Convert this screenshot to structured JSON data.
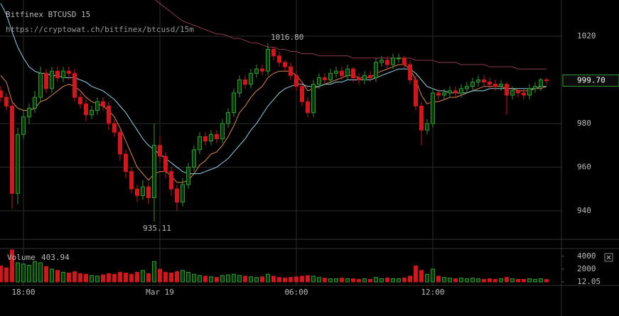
{
  "chart_data": {
    "type": "candlestick",
    "title": "Bitfinex BTCUSD 15",
    "subtitle": "https://cryptowat.ch/bitfinex/btcusd/15m",
    "categories": [
      null,
      null,
      null,
      null,
      "18:00",
      null,
      null,
      null,
      null,
      null,
      null,
      null,
      null,
      null,
      null,
      null,
      null,
      null,
      null,
      null,
      null,
      null,
      null,
      null,
      null,
      null,
      null,
      null,
      "Mar 19",
      null,
      null,
      null,
      null,
      null,
      null,
      null,
      null,
      null,
      null,
      null,
      null,
      null,
      null,
      null,
      null,
      null,
      null,
      null,
      null,
      null,
      null,
      null,
      "06:00",
      null,
      null,
      null,
      null,
      null,
      null,
      null,
      null,
      null,
      null,
      null,
      null,
      null,
      null,
      null,
      null,
      null,
      null,
      null,
      null,
      null,
      null,
      null,
      "12:00",
      null,
      null,
      null,
      null,
      null,
      null,
      null,
      null,
      null,
      null,
      null,
      null,
      null,
      null,
      null,
      null,
      null,
      null,
      null,
      null
    ],
    "open": [
      995,
      992,
      988,
      948,
      975,
      983,
      987,
      992,
      1003,
      996,
      1004,
      1001,
      1004,
      1003,
      992,
      989,
      984,
      986,
      990,
      988,
      980,
      976,
      966,
      958,
      950,
      947,
      951,
      946,
      970,
      965,
      958,
      950,
      944,
      952,
      960,
      968,
      974,
      972,
      975,
      973,
      980,
      985,
      994,
      1000,
      998,
      1003,
      1005,
      1004,
      1014,
      1011,
      1008,
      1006,
      1002,
      997,
      990,
      985,
      998,
      1001,
      1000,
      1003,
      1004,
      1002,
      1005,
      1001,
      1000,
      1002,
      1001,
      1008,
      1009,
      1007,
      1010,
      1010,
      1007,
      1000,
      988,
      977,
      980,
      994,
      993,
      994,
      995,
      994,
      996,
      997,
      999,
      1000,
      999,
      998,
      997,
      998,
      993,
      995,
      994,
      993,
      996,
      997,
      1000
    ],
    "high": [
      997,
      994,
      990,
      978,
      986,
      989,
      995,
      1006,
      1005,
      1006,
      1006,
      1006,
      1006,
      1005,
      994,
      991,
      988,
      992,
      992,
      990,
      982,
      978,
      968,
      960,
      952,
      954,
      953,
      980,
      974,
      967,
      960,
      952,
      955,
      962,
      970,
      976,
      976,
      977,
      977,
      982,
      987,
      996,
      1002,
      1002,
      1005,
      1007,
      1007,
      1016.8,
      1015,
      1013,
      1009,
      1008,
      1004,
      999,
      992,
      1000,
      1003,
      1003,
      1005,
      1006,
      1006,
      1007,
      1006,
      1003,
      1004,
      1004,
      1010,
      1011,
      1011,
      1012,
      1012,
      1011,
      1009,
      1002,
      990,
      982,
      996,
      996,
      996,
      997,
      997,
      998,
      999,
      1001,
      1002,
      1002,
      1001,
      1000,
      1000,
      999,
      997,
      996,
      996,
      998,
      999,
      1001,
      1001
    ],
    "low": [
      990,
      986,
      941,
      943,
      973,
      980,
      985,
      990,
      994,
      994,
      999,
      999,
      1000,
      990,
      987,
      981,
      982,
      984,
      986,
      977,
      974,
      963,
      955,
      948,
      944,
      945,
      943,
      935.11,
      962,
      955,
      947,
      940,
      942,
      950,
      958,
      966,
      970,
      970,
      971,
      971,
      978,
      983,
      992,
      996,
      996,
      1001,
      1002,
      1002,
      1009,
      1006,
      1004,
      1000,
      995,
      988,
      983,
      983,
      996,
      998,
      998,
      1001,
      1000,
      1000,
      999,
      998,
      998,
      999,
      999,
      1006,
      1005,
      1005,
      1008,
      1005,
      998,
      986,
      970,
      975,
      978,
      991,
      991,
      992,
      992,
      992,
      994,
      995,
      997,
      997,
      996,
      995,
      995,
      984,
      991,
      992,
      991,
      991,
      994,
      995,
      998
    ],
    "close": [
      992,
      988,
      948,
      975,
      983,
      987,
      992,
      1003,
      996,
      1004,
      1001,
      1004,
      1003,
      992,
      989,
      984,
      986,
      990,
      988,
      980,
      976,
      966,
      958,
      950,
      947,
      951,
      946,
      970,
      965,
      958,
      950,
      944,
      952,
      960,
      968,
      974,
      972,
      975,
      973,
      980,
      985,
      994,
      1000,
      998,
      1003,
      1005,
      1004,
      1014,
      1011,
      1008,
      1006,
      1002,
      997,
      990,
      985,
      998,
      1001,
      1000,
      1003,
      1004,
      1002,
      1005,
      1001,
      1000,
      1002,
      1001,
      1008,
      1009,
      1007,
      1010,
      1010,
      1007,
      1000,
      988,
      977,
      980,
      994,
      993,
      994,
      995,
      994,
      996,
      997,
      999,
      1000,
      999,
      998,
      997,
      998,
      993,
      995,
      994,
      993,
      996,
      997,
      1000,
      999.7
    ],
    "up_color": "#2f9a2f",
    "down_color": "#d2161b",
    "ylim": [
      927.6,
      1036.6
    ],
    "yticks": [
      940,
      960,
      980,
      1020
    ],
    "grid": true,
    "last_label": "999.70",
    "annotations": [
      {
        "label": "1016.80",
        "value": 1016.8,
        "of": "high"
      },
      {
        "label": "935.11",
        "value": 935.11,
        "of": "low"
      }
    ],
    "lines": [
      {
        "color": "#e0884a",
        "values": [
          1002,
          999,
          990,
          987,
          986,
          986,
          987,
          990,
          991,
          993,
          995,
          997,
          998,
          997,
          995,
          992,
          990,
          989,
          988,
          986,
          983,
          978,
          972,
          966,
          960,
          957,
          954,
          957,
          958,
          958,
          956,
          953,
          953,
          954,
          957,
          961,
          963,
          966,
          967,
          970,
          974,
          979,
          985,
          988,
          992,
          995,
          997,
          1001,
          1003,
          1004,
          1004,
          1004,
          1002,
          999,
          995,
          996,
          997,
          998,
          999,
          1000,
          1001,
          1002,
          1002,
          1001,
          1001,
          1001,
          1003,
          1004,
          1005,
          1006,
          1007,
          1007,
          1005,
          1000,
          993,
          989,
          990,
          990,
          991,
          992,
          992,
          993,
          994,
          995,
          996,
          997,
          997,
          997,
          997,
          996,
          996,
          995,
          995,
          995,
          996,
          996,
          997
        ]
      },
      {
        "color": "#8fd3e8",
        "values": [
          1035,
          1030,
          1022,
          1015,
          1010,
          1006,
          1004,
          1003,
          1003,
          1002,
          1002,
          1001,
          1001,
          1001,
          1000,
          999,
          997,
          996,
          995,
          993,
          991,
          988,
          985,
          981,
          977,
          973,
          970,
          968,
          966,
          964,
          962,
          960,
          958,
          957,
          957,
          957,
          958,
          959,
          960,
          962,
          964,
          967,
          970,
          973,
          977,
          980,
          984,
          988,
          991,
          994,
          996,
          997,
          998,
          998,
          997,
          997,
          997,
          998,
          998,
          999,
          999,
          1000,
          1000,
          1000,
          1000,
          1000,
          1001,
          1002,
          1003,
          1004,
          1005,
          1005,
          1005,
          1003,
          1000,
          997,
          996,
          995,
          995,
          994,
          994,
          994,
          994,
          995,
          995,
          995,
          996,
          996,
          996,
          996,
          996,
          996,
          996,
          996,
          996,
          997,
          997
        ]
      },
      {
        "color": "#8a3a4a",
        "values": [
          null,
          null,
          null,
          null,
          null,
          null,
          null,
          null,
          null,
          null,
          null,
          null,
          null,
          null,
          null,
          null,
          null,
          null,
          null,
          null,
          null,
          null,
          null,
          null,
          null,
          null,
          null,
          1037,
          1035,
          1033,
          1031,
          1029,
          1027,
          1026,
          1025,
          1024,
          1023,
          1022,
          1021,
          1021,
          1020,
          1019,
          1019,
          1018,
          1017,
          1017,
          1016,
          1015,
          1015,
          1014,
          1014,
          1013,
          1013,
          1012,
          1012,
          1012,
          1011,
          1011,
          1011,
          1011,
          1011,
          1011,
          1010,
          1010,
          1010,
          1010,
          1010,
          1010,
          1010,
          1010,
          1010,
          1010,
          1010,
          1009,
          1009,
          1009,
          1009,
          1008,
          1008,
          1008,
          1008,
          1007,
          1007,
          1007,
          1007,
          1007,
          1006,
          1006,
          1006,
          1006,
          1006,
          1005,
          1005,
          1005,
          1005,
          1005,
          1005
        ]
      }
    ],
    "volume": {
      "label": "Volume",
      "values": [
        2500,
        2200,
        5000,
        3000,
        2800,
        2600,
        3200,
        3000,
        2400,
        2000,
        1800,
        1500,
        1400,
        1600,
        1300,
        1200,
        1000,
        900,
        1100,
        1300,
        1200,
        1500,
        1400,
        1200,
        1500,
        1800,
        1300,
        3200,
        2000,
        1500,
        1400,
        1600,
        1800,
        1500,
        1200,
        1000,
        900,
        800,
        700,
        1000,
        1100,
        1200,
        1000,
        900,
        800,
        700,
        800,
        1200,
        900,
        700,
        600,
        700,
        800,
        900,
        1000,
        900,
        700,
        600,
        500,
        500,
        600,
        500,
        500,
        400,
        500,
        400,
        700,
        500,
        600,
        500,
        500,
        600,
        900,
        2500,
        1800,
        1200,
        2000,
        900,
        700,
        600,
        500,
        600,
        500,
        600,
        500,
        400,
        500,
        400,
        500,
        700,
        500,
        400,
        400,
        500,
        400,
        500,
        403.94
      ],
      "ylim": [
        0,
        5000
      ],
      "yticks": [
        12.05,
        2000,
        4000
      ]
    }
  }
}
